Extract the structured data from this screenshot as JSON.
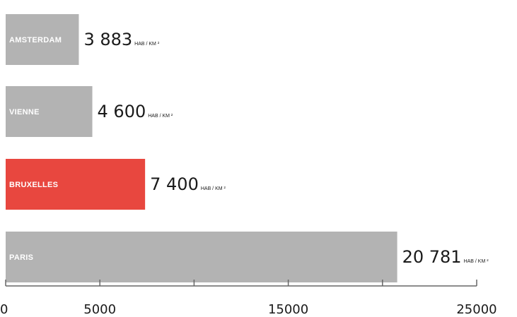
{
  "chart_data": {
    "type": "bar",
    "orientation": "horizontal",
    "categories": [
      "AMSTERDAM",
      "VIENNE",
      "BRUXELLES",
      "PARIS"
    ],
    "values": [
      3883,
      4600,
      7400,
      20781
    ],
    "value_labels": [
      "3 883",
      "4 600",
      "7 400",
      "20 781"
    ],
    "unit": "HAB / KM ²",
    "xlim": [
      0,
      25000
    ],
    "major_ticks": [
      0,
      5000,
      15000,
      25000
    ],
    "minor_ticks": [
      10000,
      20000
    ],
    "tick_labels": [
      "0",
      "5000",
      "15000",
      "25000"
    ],
    "colors": {
      "default": "#b3b3b3",
      "highlight": "#e8473f",
      "highlight_category": "BRUXELLES"
    },
    "grid": false
  }
}
